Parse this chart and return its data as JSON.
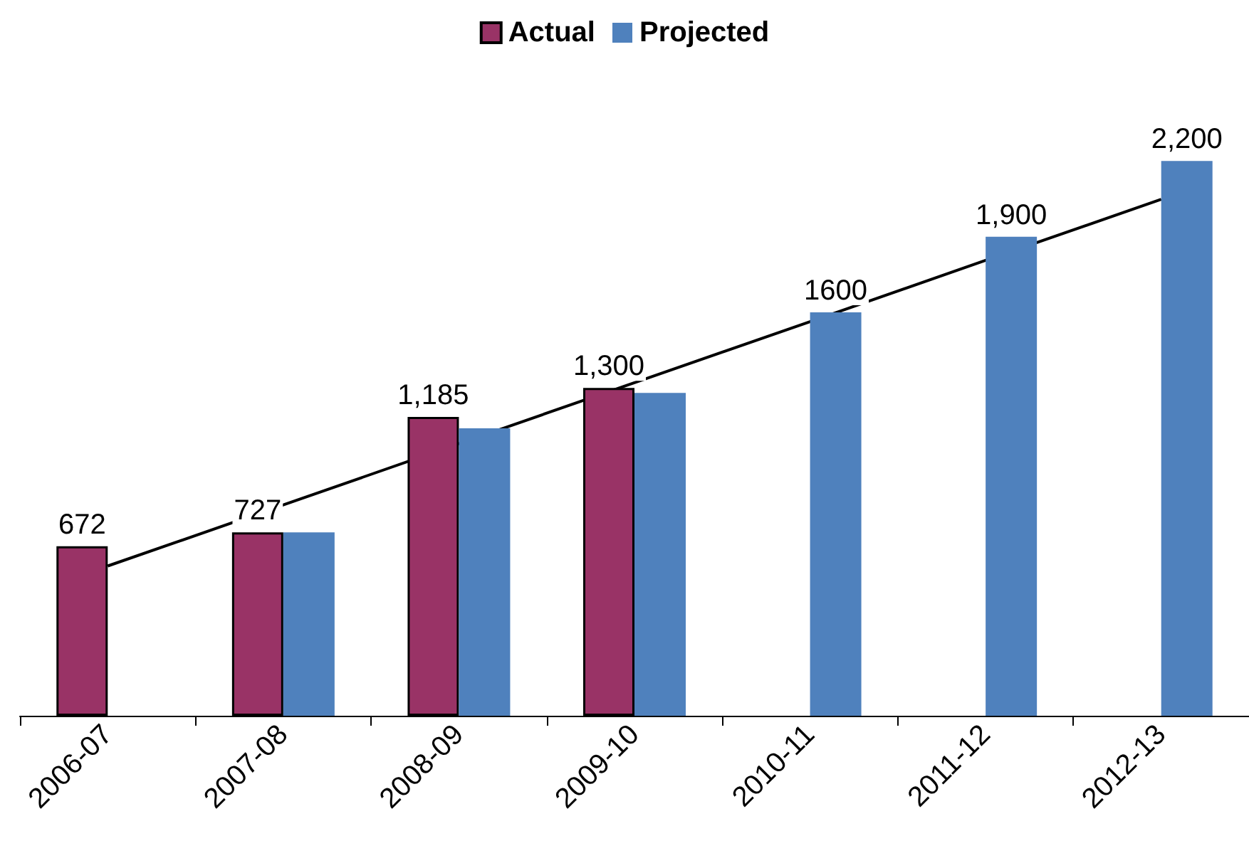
{
  "chart_data": {
    "type": "bar",
    "categories": [
      "2006-07",
      "2007-08",
      "2008-09",
      "2009-10",
      "2010-11",
      "2011-12",
      "2012-13"
    ],
    "series": [
      {
        "name": "Actual",
        "color": "#993366",
        "values": [
          672,
          727,
          1185,
          1300,
          null,
          null,
          null
        ],
        "value_labels": [
          "672",
          "727",
          "1,185",
          "1,300",
          null,
          null,
          null
        ]
      },
      {
        "name": "Projected",
        "color": "#4f81bd",
        "values": [
          null,
          727,
          1140,
          1280,
          1600,
          1900,
          2200
        ],
        "value_labels": [
          null,
          null,
          null,
          null,
          "1600",
          "1,900",
          "2,200"
        ]
      },
      {
        "type": "line",
        "color": "#000000",
        "values": [
          594,
          836,
          1079,
          1321,
          1563,
          1806,
          2048
        ]
      }
    ],
    "legend": "top",
    "grid": false,
    "marker": "none",
    "line_style": "solid"
  }
}
